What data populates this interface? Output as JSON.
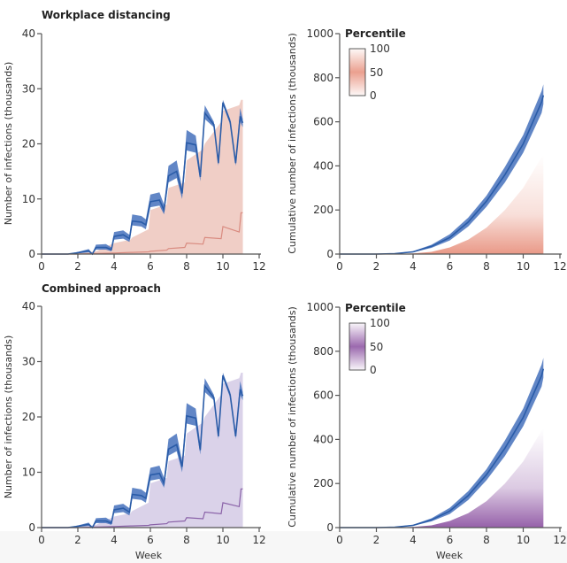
{
  "chart_data": [
    {
      "type": "line",
      "panel": "daily",
      "title": "Workplace distancing",
      "xlabel": "",
      "ylabel": "Number of infections (thousands)",
      "xlim": [
        0,
        12
      ],
      "ylim": [
        0,
        40
      ],
      "xticks": [
        0,
        2,
        4,
        6,
        8,
        10,
        12
      ],
      "yticks": [
        0,
        10,
        20,
        30,
        40
      ],
      "percentile_color": "#eab9ae",
      "median_color": "#d98b80",
      "blue": {
        "x": [
          0,
          1.45,
          1.9,
          2.6,
          2.8,
          3.0,
          3.55,
          3.85,
          4.0,
          4.5,
          4.85,
          5.0,
          5.5,
          5.75,
          6.0,
          6.5,
          6.75,
          7.0,
          7.45,
          7.75,
          8.0,
          8.5,
          8.75,
          9.0,
          9.5,
          9.75,
          10.0,
          10.4,
          10.7,
          10.95,
          11.1
        ],
        "median": [
          0,
          0,
          0.2,
          0.6,
          0,
          1.2,
          1.2,
          0.8,
          3.2,
          3.5,
          2.8,
          6,
          5.8,
          5.3,
          9.5,
          9.8,
          8,
          14.2,
          15,
          11,
          20.2,
          19.8,
          14,
          25.6,
          23.5,
          16.5,
          27.5,
          24,
          16.5,
          25,
          23.8
        ],
        "lower": [
          0,
          0,
          0.1,
          0.3,
          0,
          0.8,
          0.8,
          0.5,
          2.6,
          2.8,
          2.2,
          5.2,
          5,
          4.5,
          8.5,
          8.8,
          7.2,
          13,
          13.8,
          10,
          18.8,
          18.4,
          13.2,
          24.5,
          23,
          16,
          27,
          23.5,
          16,
          24,
          23
        ],
        "upper": [
          0,
          0,
          0.3,
          0.9,
          0.1,
          1.7,
          1.8,
          1.2,
          4,
          4.3,
          3.5,
          7.2,
          6.9,
          6.3,
          10.8,
          11.2,
          9,
          16,
          17,
          12,
          22.5,
          21.5,
          15,
          27,
          24,
          17,
          28,
          24.5,
          17,
          26.5,
          24.5
        ]
      },
      "percentile_band": {
        "x": [
          0,
          2,
          3,
          4,
          4.9,
          5.0,
          5.9,
          6.0,
          6.9,
          7.0,
          7.9,
          8.0,
          8.9,
          9.0,
          9.9,
          10.0,
          10.9,
          11.0,
          11.1
        ],
        "upper": [
          0,
          0.1,
          0.5,
          2,
          2.6,
          3,
          4.5,
          8,
          9,
          12,
          13,
          17,
          19,
          20,
          24,
          26,
          27,
          28,
          28
        ],
        "median": [
          0,
          0,
          0.1,
          0.2,
          0.3,
          0.3,
          0.4,
          0.5,
          0.7,
          1,
          1.2,
          2,
          1.8,
          3,
          2.8,
          5,
          4,
          7.5,
          7.5
        ]
      }
    },
    {
      "type": "area",
      "panel": "cumulative",
      "xlabel": "",
      "ylabel": "Cumulative number of infections (thousands)",
      "xlim": [
        0,
        12
      ],
      "ylim": [
        0,
        1000
      ],
      "xticks": [
        0,
        2,
        4,
        6,
        8,
        10,
        12
      ],
      "yticks": [
        0,
        200,
        400,
        600,
        800,
        1000
      ],
      "legend": {
        "title": "Percentile",
        "labels": [
          "100",
          "50",
          "0"
        ],
        "position": "top-left"
      },
      "percentile_color": "#e4806a",
      "blue": {
        "x": [
          0,
          2,
          3,
          4,
          5,
          6,
          7,
          8,
          9,
          10,
          11,
          11.1
        ],
        "median": [
          0,
          0,
          2,
          10,
          35,
          75,
          145,
          240,
          360,
          500,
          690,
          720
        ],
        "lower": [
          0,
          0,
          1,
          8,
          28,
          62,
          125,
          215,
          325,
          460,
          640,
          680
        ],
        "upper": [
          0,
          0,
          3,
          13,
          42,
          90,
          165,
          265,
          395,
          540,
          740,
          770
        ]
      },
      "percentile_band": {
        "x": [
          0,
          3,
          4,
          5,
          6,
          7,
          8,
          9,
          10,
          11,
          11.1
        ],
        "upper": [
          0,
          0,
          3,
          10,
          30,
          65,
          120,
          200,
          300,
          440,
          450
        ],
        "median": [
          0,
          0,
          0,
          1,
          3,
          6,
          10,
          16,
          25,
          40,
          42
        ]
      }
    },
    {
      "type": "line",
      "panel": "daily",
      "title": "Combined approach",
      "xlabel": "Week",
      "ylabel": "Number of infections (thousands)",
      "xlim": [
        0,
        12
      ],
      "ylim": [
        0,
        40
      ],
      "xticks": [
        0,
        2,
        4,
        6,
        8,
        10,
        12
      ],
      "yticks": [
        0,
        10,
        20,
        30,
        40
      ],
      "percentile_color": "#cbbfe0",
      "median_color": "#8a62a8",
      "blue": {
        "x": [
          0,
          1.45,
          1.9,
          2.6,
          2.8,
          3.0,
          3.55,
          3.85,
          4.0,
          4.5,
          4.85,
          5.0,
          5.5,
          5.75,
          6.0,
          6.5,
          6.75,
          7.0,
          7.45,
          7.75,
          8.0,
          8.5,
          8.75,
          9.0,
          9.5,
          9.75,
          10.0,
          10.4,
          10.7,
          10.95,
          11.1
        ],
        "median": [
          0,
          0,
          0.2,
          0.6,
          0,
          1.2,
          1.2,
          0.8,
          3.2,
          3.5,
          2.8,
          6,
          5.8,
          5.3,
          9.5,
          9.8,
          8,
          14.2,
          15,
          11,
          20.2,
          19.8,
          14,
          25.6,
          23.5,
          16.5,
          27.5,
          24,
          16.5,
          25,
          23.8
        ],
        "lower": [
          0,
          0,
          0.1,
          0.3,
          0,
          0.8,
          0.8,
          0.5,
          2.6,
          2.8,
          2.2,
          5.2,
          5,
          4.5,
          8.5,
          8.8,
          7.2,
          13,
          13.8,
          10,
          18.8,
          18.4,
          13.2,
          24.5,
          23,
          16,
          27,
          23.5,
          16,
          24,
          23
        ],
        "upper": [
          0,
          0,
          0.3,
          0.9,
          0.1,
          1.7,
          1.8,
          1.2,
          4,
          4.3,
          3.5,
          7.2,
          6.9,
          6.3,
          10.8,
          11.2,
          9,
          16,
          17,
          12,
          22.5,
          21.5,
          15,
          27,
          24,
          17,
          28,
          24.5,
          17,
          26.5,
          24.5
        ]
      },
      "percentile_band": {
        "x": [
          0,
          2,
          3,
          4,
          4.9,
          5.0,
          5.9,
          6.0,
          6.9,
          7.0,
          7.9,
          8.0,
          8.9,
          9.0,
          9.9,
          10.0,
          10.9,
          11.0,
          11.1
        ],
        "upper": [
          0,
          0.1,
          0.5,
          2,
          2.6,
          3,
          4.5,
          8,
          9,
          12,
          13,
          17,
          19,
          20,
          24,
          26,
          27,
          28,
          28
        ],
        "median": [
          0,
          0,
          0.1,
          0.2,
          0.3,
          0.3,
          0.4,
          0.5,
          0.7,
          1,
          1.2,
          1.8,
          1.6,
          2.8,
          2.5,
          4.5,
          3.8,
          7,
          7
        ]
      }
    },
    {
      "type": "area",
      "panel": "cumulative",
      "xlabel": "Week",
      "ylabel": "Cumulative number of infections (thousands)",
      "xlim": [
        0,
        12
      ],
      "ylim": [
        0,
        1000
      ],
      "xticks": [
        0,
        2,
        4,
        6,
        8,
        10,
        12
      ],
      "yticks": [
        0,
        200,
        400,
        600,
        800,
        1000
      ],
      "legend": {
        "title": "Percentile",
        "labels": [
          "100",
          "50",
          "0"
        ],
        "position": "top-left"
      },
      "percentile_color": "#8a4fa0",
      "blue": {
        "x": [
          0,
          2,
          3,
          4,
          5,
          6,
          7,
          8,
          9,
          10,
          11,
          11.1
        ],
        "median": [
          0,
          0,
          2,
          10,
          35,
          75,
          145,
          240,
          360,
          500,
          690,
          720
        ],
        "lower": [
          0,
          0,
          1,
          8,
          28,
          62,
          125,
          215,
          325,
          460,
          640,
          680
        ],
        "upper": [
          0,
          0,
          3,
          13,
          42,
          90,
          165,
          265,
          395,
          540,
          740,
          770
        ]
      },
      "percentile_band": {
        "x": [
          0,
          3,
          4,
          5,
          6,
          7,
          8,
          9,
          10,
          11,
          11.1
        ],
        "upper": [
          0,
          0,
          3,
          10,
          30,
          65,
          120,
          200,
          300,
          440,
          450
        ],
        "median": [
          0,
          0,
          0,
          1,
          3,
          6,
          10,
          16,
          25,
          40,
          42
        ]
      }
    }
  ],
  "colors": {
    "blue_line": "#2a5ca8",
    "blue_band": "#5079c0"
  }
}
